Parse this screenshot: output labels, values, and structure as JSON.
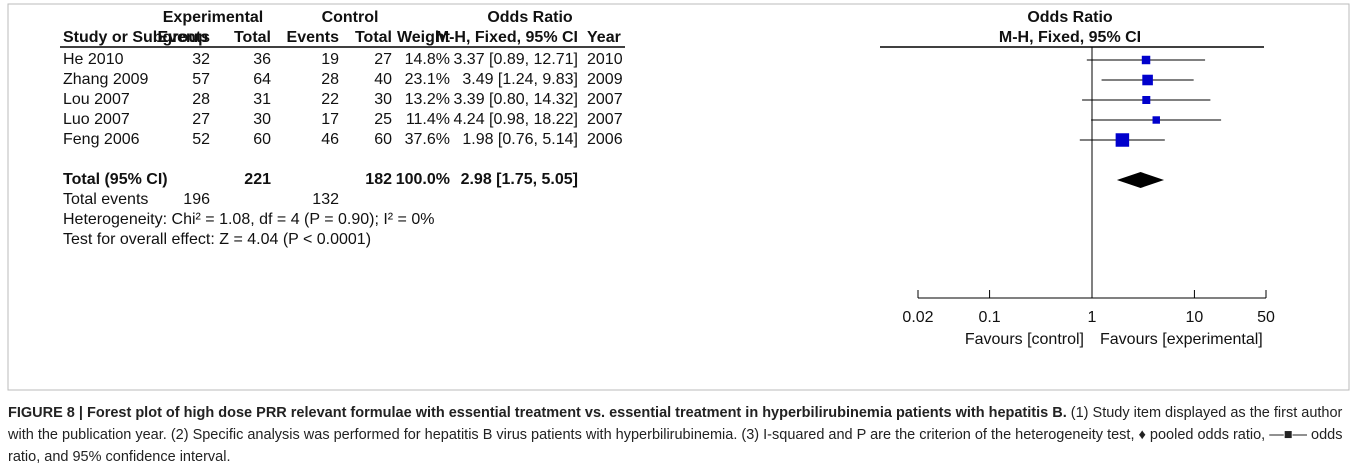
{
  "chart_data": {
    "type": "forest",
    "group_headers": [
      "Experimental",
      "Control",
      "Odds Ratio"
    ],
    "column_headers": [
      "Study or Subgroup",
      "Events",
      "Total",
      "Events",
      "Total",
      "Weight",
      "M-H, Fixed, 95% CI",
      "Year"
    ],
    "plot_headers": [
      "Odds Ratio",
      "M-H, Fixed, 95% CI"
    ],
    "studies": [
      {
        "name": "He 2010",
        "exp_events": 32,
        "exp_total": 36,
        "ctl_events": 19,
        "ctl_total": 27,
        "weight": 14.8,
        "weight_label": "14.8%",
        "or": 3.37,
        "lo": 0.89,
        "hi": 12.71,
        "ci_label": "3.37 [0.89, 12.71]",
        "year": "2010"
      },
      {
        "name": "Zhang 2009",
        "exp_events": 57,
        "exp_total": 64,
        "ctl_events": 28,
        "ctl_total": 40,
        "weight": 23.1,
        "weight_label": "23.1%",
        "or": 3.49,
        "lo": 1.24,
        "hi": 9.83,
        "ci_label": "3.49 [1.24, 9.83]",
        "year": "2009"
      },
      {
        "name": "Lou 2007",
        "exp_events": 28,
        "exp_total": 31,
        "ctl_events": 22,
        "ctl_total": 30,
        "weight": 13.2,
        "weight_label": "13.2%",
        "or": 3.39,
        "lo": 0.8,
        "hi": 14.32,
        "ci_label": "3.39 [0.80, 14.32]",
        "year": "2007"
      },
      {
        "name": "Luo 2007",
        "exp_events": 27,
        "exp_total": 30,
        "ctl_events": 17,
        "ctl_total": 25,
        "weight": 11.4,
        "weight_label": "11.4%",
        "or": 4.24,
        "lo": 0.98,
        "hi": 18.22,
        "ci_label": "4.24 [0.98, 18.22]",
        "year": "2007"
      },
      {
        "name": "Feng 2006",
        "exp_events": 52,
        "exp_total": 60,
        "ctl_events": 46,
        "ctl_total": 60,
        "weight": 37.6,
        "weight_label": "37.6%",
        "or": 1.98,
        "lo": 0.76,
        "hi": 5.14,
        "ci_label": "1.98 [0.76, 5.14]",
        "year": "2006"
      }
    ],
    "total": {
      "name": "Total (95% CI)",
      "exp_total": 221,
      "ctl_total": 182,
      "weight": 100.0,
      "weight_label": "100.0%",
      "or": 2.98,
      "lo": 1.75,
      "hi": 5.05,
      "ci_label": "2.98 [1.75, 5.05]"
    },
    "total_events": {
      "name": "Total events",
      "exp_events": 196,
      "ctl_events": 132
    },
    "heterogeneity": "Heterogeneity: Chi² = 1.08, df = 4 (P = 0.90); I² = 0%",
    "overall_effect": "Test for overall effect: Z = 4.04 (P < 0.0001)",
    "log_x": true,
    "xlim": [
      0.02,
      50
    ],
    "xticks": [
      0.02,
      0.1,
      1,
      10,
      50
    ],
    "favours": [
      "Favours [control]",
      "Favours [experimental]"
    ],
    "color": "#0000cc"
  },
  "caption": {
    "bold": "FIGURE 8 | Forest plot of high dose PRR relevant formulae with essential treatment vs. essential treatment in hyperbilirubinemia patients with hepatitis B.",
    "text": " (1) Study item displayed as the first author with the publication year. (2) Specific analysis was performed for hepatitis B virus patients with hyperbilirubinemia. (3) I-squared and P are the criterion of the heterogeneity test, ♦ pooled odds ratio, —■— odds ratio, and 95% confidence interval."
  }
}
